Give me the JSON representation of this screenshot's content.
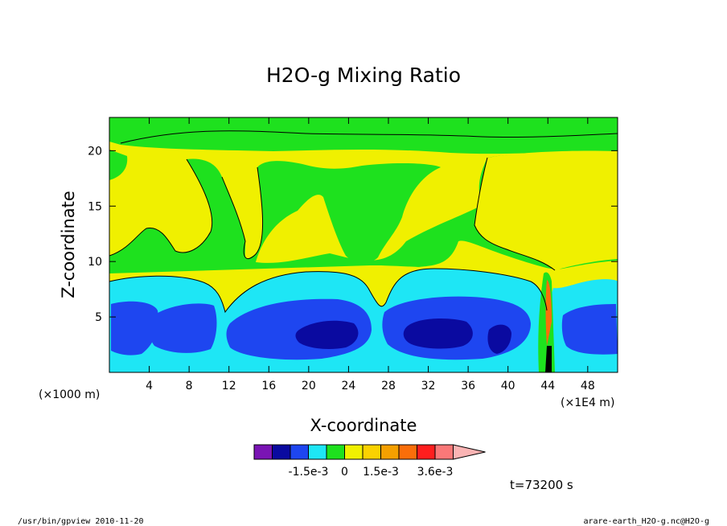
{
  "chart_data": {
    "type": "heatmap",
    "title": "H2O-g Mixing Ratio",
    "xlabel": "X-coordinate",
    "ylabel": "Z-coordinate",
    "x_unit_left": "(×1000 m)",
    "x_unit_right": "(×1E4 m)",
    "xlim": [
      0,
      51
    ],
    "ylim": [
      0,
      23
    ],
    "x_ticks": [
      "4",
      "8",
      "12",
      "16",
      "20",
      "24",
      "28",
      "32",
      "36",
      "40",
      "44",
      "48"
    ],
    "x_tick_values": [
      4,
      8,
      12,
      16,
      20,
      24,
      28,
      32,
      36,
      40,
      44,
      48
    ],
    "y_ticks": [
      "5",
      "10",
      "15",
      "20"
    ],
    "y_tick_values": [
      5,
      10,
      15,
      20
    ],
    "colorbar": {
      "colors": [
        "#7a14b4",
        "#0a0aa0",
        "#1e46f0",
        "#1ee6f5",
        "#1ee11e",
        "#f0f000",
        "#fad200",
        "#f5a000",
        "#fa6e0a",
        "#ff1e1e",
        "#fa7878",
        "#fab4b4"
      ],
      "labels": [
        "-1.5e-3",
        "0",
        "1.5e-3",
        "3.6e-3"
      ],
      "label_bins": [
        3,
        5,
        7,
        10
      ]
    },
    "time_label": "t=73200 s"
  },
  "footer": {
    "left": "/usr/bin/gpview   2010-11-20",
    "right": "arare-earth_H2O-g.nc@H2O-g"
  }
}
